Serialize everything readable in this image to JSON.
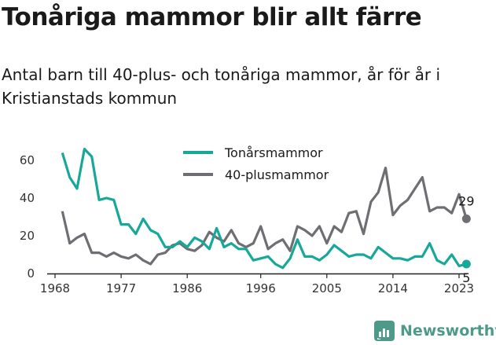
{
  "title": "Tonåriga mammor blir allt färre",
  "subtitle": "Antal barn till 40-plus- och tonåriga mammor, år för år i Kristianstads kommun",
  "brand": {
    "name": "Newsworthy"
  },
  "colors": {
    "teen": "#17a89a",
    "forty": "#6e6e73",
    "axis": "#222222",
    "brand": "#4e9a8a"
  },
  "chart_data": {
    "type": "line",
    "title": "Tonåriga mammor blir allt färre",
    "xlim": [
      1968,
      2023
    ],
    "ylim": [
      0,
      65
    ],
    "xticks": [
      1968,
      1977,
      1986,
      1996,
      2005,
      2014,
      2023
    ],
    "yticks": [
      0,
      20,
      40,
      60
    ],
    "legend_position": "top-center",
    "grid": false,
    "series": [
      {
        "name": "Tonårsmammor",
        "color": "#17a89a",
        "end_label": "5",
        "x": [
          1969,
          1970,
          1971,
          1972,
          1973,
          1974,
          1975,
          1976,
          1977,
          1978,
          1979,
          1980,
          1981,
          1982,
          1983,
          1984,
          1985,
          1986,
          1987,
          1988,
          1989,
          1990,
          1991,
          1992,
          1993,
          1994,
          1995,
          1996,
          1997,
          1998,
          1999,
          2000,
          2001,
          2002,
          2003,
          2004,
          2005,
          2006,
          2007,
          2008,
          2009,
          2010,
          2011,
          2012,
          2013,
          2014,
          2015,
          2016,
          2017,
          2018,
          2019,
          2020,
          2021,
          2022,
          2023,
          2024
        ],
        "values": [
          64,
          51,
          45,
          66,
          62,
          39,
          40,
          39,
          26,
          26,
          21,
          29,
          23,
          21,
          14,
          14,
          17,
          14,
          19,
          17,
          13,
          24,
          14,
          16,
          13,
          13,
          7,
          8,
          9,
          5,
          3,
          8,
          18,
          9,
          9,
          7,
          10,
          15,
          12,
          9,
          10,
          10,
          8,
          14,
          11,
          8,
          8,
          7,
          9,
          9,
          16,
          7,
          5,
          10,
          4,
          5
        ]
      },
      {
        "name": "40-plusmammor",
        "color": "#6e6e73",
        "end_label": "29",
        "x": [
          1969,
          1970,
          1971,
          1972,
          1973,
          1974,
          1975,
          1976,
          1977,
          1978,
          1979,
          1980,
          1981,
          1982,
          1983,
          1984,
          1985,
          1986,
          1987,
          1988,
          1989,
          1990,
          1991,
          1992,
          1993,
          1994,
          1995,
          1996,
          1997,
          1998,
          1999,
          2000,
          2001,
          2002,
          2003,
          2004,
          2005,
          2006,
          2007,
          2008,
          2009,
          2010,
          2011,
          2012,
          2013,
          2014,
          2015,
          2016,
          2017,
          2018,
          2019,
          2020,
          2021,
          2022,
          2023,
          2024
        ],
        "values": [
          33,
          16,
          19,
          21,
          11,
          11,
          9,
          11,
          9,
          8,
          10,
          7,
          5,
          10,
          11,
          15,
          16,
          13,
          12,
          15,
          22,
          19,
          17,
          23,
          16,
          14,
          16,
          25,
          13,
          16,
          18,
          12,
          25,
          23,
          20,
          25,
          16,
          25,
          22,
          32,
          33,
          21,
          38,
          43,
          56,
          31,
          36,
          39,
          45,
          51,
          33,
          35,
          35,
          32,
          42,
          29
        ]
      }
    ]
  }
}
